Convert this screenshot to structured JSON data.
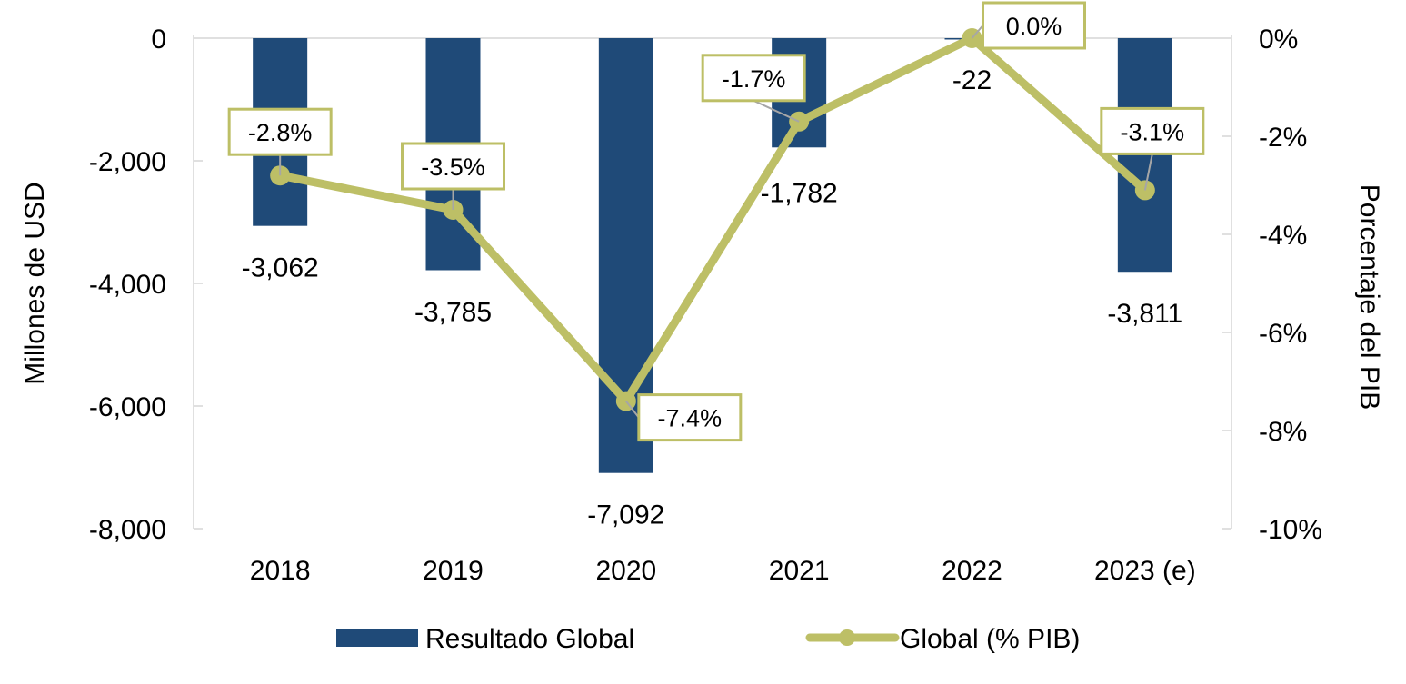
{
  "chart_data": {
    "type": "bar",
    "title": "",
    "categories": [
      "2018",
      "2019",
      "2020",
      "2021",
      "2022",
      "2023 (e)"
    ],
    "series": [
      {
        "name": "Resultado Global",
        "type": "bar",
        "axis": "left",
        "color": "#1F4A78",
        "values": [
          -3062,
          -3785,
          -7092,
          -1782,
          -22,
          -3811
        ],
        "labels": [
          "-3,062",
          "-3,785",
          "-7,092",
          "-1,782",
          "-22",
          "-3,811"
        ]
      },
      {
        "name": "Global (% PIB)",
        "type": "line",
        "axis": "right",
        "color": "#BDBF66",
        "values": [
          -2.8,
          -3.5,
          -7.4,
          -1.7,
          0.0,
          -3.1
        ],
        "labels": [
          "-2.8%",
          "-3.5%",
          "-7.4%",
          "-1.7%",
          "0.0%",
          "-3.1%"
        ]
      }
    ],
    "ylabel": "Millones de USD",
    "ylabel_right": "Porcentaje del PIB",
    "ylim": [
      -8000,
      0
    ],
    "ylim_right": [
      -10,
      0
    ],
    "yticks": [
      0,
      -2000,
      -4000,
      -6000,
      -8000
    ],
    "ytick_labels": [
      "0",
      "-2,000",
      "-4,000",
      "-6,000",
      "-8,000"
    ],
    "yticks_right": [
      0,
      -2,
      -4,
      -6,
      -8,
      -10
    ],
    "ytick_labels_right": [
      "0%",
      "-2%",
      "-4%",
      "-6%",
      "-8%",
      "-10%"
    ],
    "grid": false,
    "legend": {
      "position": "bottom",
      "entries": [
        "Resultado Global",
        "Global (% PIB)"
      ]
    },
    "axis_color": "#E0E0E0",
    "leader_color": "#A6A6A6"
  }
}
